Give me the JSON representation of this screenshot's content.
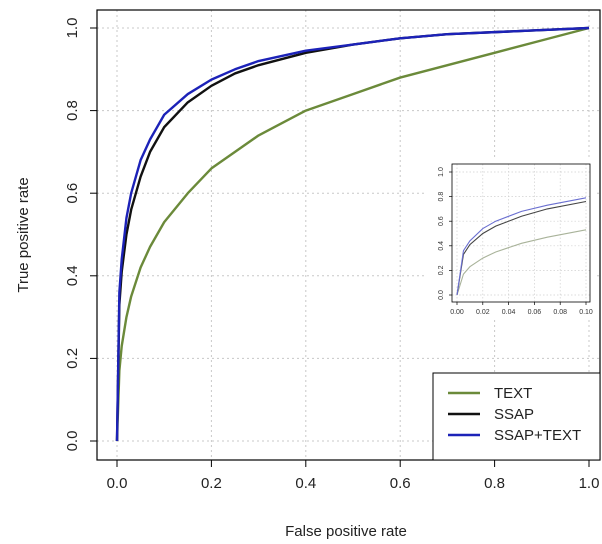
{
  "chart_data": {
    "type": "line",
    "title": "",
    "xlabel": "False positive rate",
    "ylabel": "True positive rate",
    "xlim": [
      0,
      1
    ],
    "ylim": [
      0,
      1
    ],
    "xticks": [
      "0.0",
      "0.2",
      "0.4",
      "0.6",
      "0.8",
      "1.0"
    ],
    "yticks": [
      "0.0",
      "0.2",
      "0.4",
      "0.6",
      "0.8",
      "1.0"
    ],
    "grid": true,
    "legend": {
      "placement": "bottom-right",
      "entries": [
        "TEXT",
        "SSAP",
        "SSAP+TEXT"
      ]
    },
    "colors": {
      "TEXT": "#6b8a3a",
      "SSAP": "#111111",
      "SSAP+TEXT": "#1c22b8"
    },
    "series": [
      {
        "name": "TEXT",
        "x": [
          0,
          0.005,
          0.01,
          0.02,
          0.03,
          0.05,
          0.07,
          0.1,
          0.15,
          0.2,
          0.25,
          0.3,
          0.4,
          0.5,
          0.6,
          0.7,
          0.8,
          0.9,
          1.0
        ],
        "y": [
          0,
          0.17,
          0.23,
          0.3,
          0.35,
          0.42,
          0.47,
          0.53,
          0.6,
          0.66,
          0.7,
          0.74,
          0.8,
          0.84,
          0.88,
          0.91,
          0.94,
          0.97,
          1.0
        ]
      },
      {
        "name": "SSAP",
        "x": [
          0,
          0.005,
          0.01,
          0.02,
          0.03,
          0.05,
          0.07,
          0.1,
          0.15,
          0.2,
          0.25,
          0.3,
          0.4,
          0.5,
          0.6,
          0.7,
          0.8,
          0.9,
          1.0
        ],
        "y": [
          0,
          0.33,
          0.41,
          0.5,
          0.56,
          0.64,
          0.7,
          0.76,
          0.82,
          0.86,
          0.89,
          0.91,
          0.94,
          0.96,
          0.975,
          0.985,
          0.99,
          0.995,
          1.0
        ]
      },
      {
        "name": "SSAP+TEXT",
        "x": [
          0,
          0.005,
          0.01,
          0.02,
          0.03,
          0.05,
          0.07,
          0.1,
          0.15,
          0.2,
          0.25,
          0.3,
          0.4,
          0.5,
          0.6,
          0.7,
          0.8,
          0.9,
          1.0
        ],
        "y": [
          0,
          0.36,
          0.44,
          0.54,
          0.6,
          0.68,
          0.73,
          0.79,
          0.84,
          0.875,
          0.9,
          0.92,
          0.945,
          0.96,
          0.975,
          0.985,
          0.99,
          0.995,
          1.0
        ]
      }
    ],
    "inset": {
      "xlim": [
        0,
        0.1
      ],
      "ylim": [
        0,
        1
      ],
      "xticks": [
        "0.00",
        "0.02",
        "0.04",
        "0.06",
        "0.08",
        "0.10"
      ],
      "yticks": [
        "0.0",
        "0.2",
        "0.4",
        "0.6",
        "0.8",
        "1.0"
      ],
      "grid": true
    }
  }
}
